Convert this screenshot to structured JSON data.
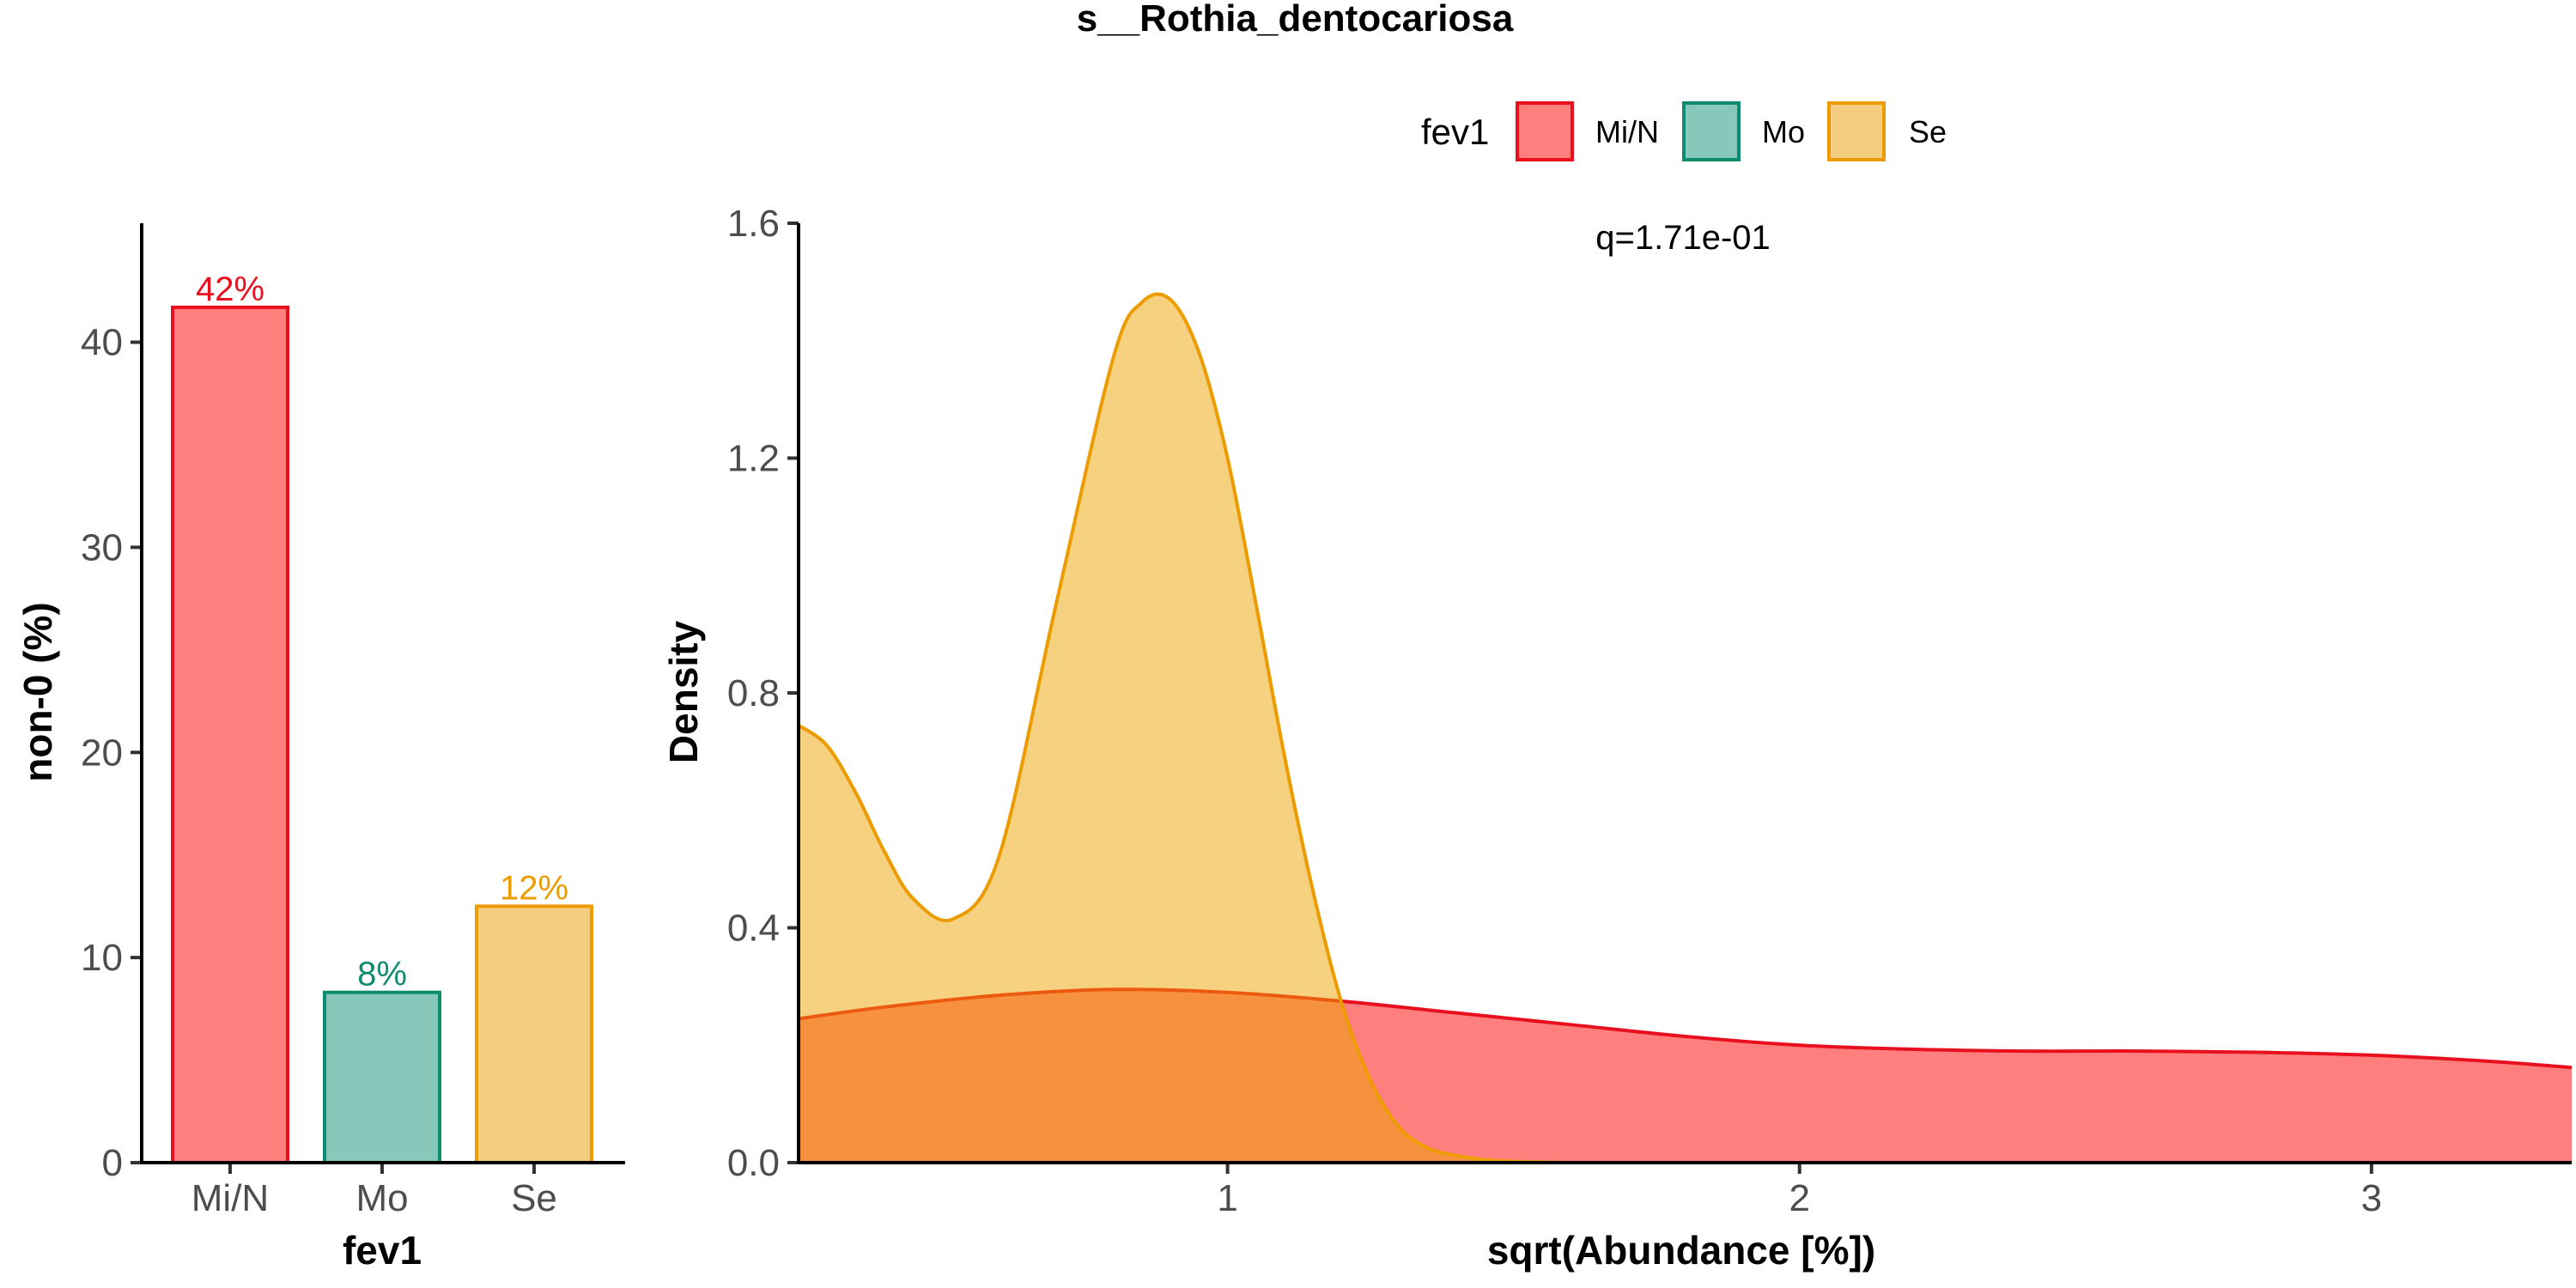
{
  "figure": {
    "title": "s__Rothia_dentocariosa"
  },
  "legend": {
    "title": "fev1",
    "entries": [
      {
        "label": "Mi/N",
        "fill": "#FF7F7F",
        "stroke": "#E8101E"
      },
      {
        "label": "Mo",
        "fill": "#88C8BA",
        "stroke": "#0E8C70"
      },
      {
        "label": "Se",
        "fill": "#F5CD80",
        "stroke": "#EC9C00"
      }
    ]
  },
  "chart_data": [
    {
      "type": "bar",
      "xlabel": "fev1",
      "ylabel": "non-0 (%)",
      "categories": [
        "Mi/N",
        "Mo",
        "Se"
      ],
      "values": [
        41.7,
        8.3,
        12.5
      ],
      "data_labels": [
        "42%",
        "8%",
        "12%"
      ],
      "ylim": [
        0,
        45.8
      ],
      "yticks": [
        0,
        10,
        20,
        30,
        40
      ],
      "ytick_labels": [
        "0",
        "10",
        "20",
        "30",
        "40"
      ],
      "colors": {
        "fill": [
          "#FF7F7F",
          "#88C8BA",
          "#F5CD80"
        ],
        "stroke": [
          "#E8101E",
          "#0E8C70",
          "#EC9C00"
        ],
        "label": [
          "#E8101E",
          "#0E8C70",
          "#EC9C00"
        ]
      },
      "grid": false
    },
    {
      "type": "area",
      "xlabel": "sqrt(Abundance [%])",
      "ylabel": "Density",
      "annotation": "q=1.71e-01",
      "xlim": [
        0.25,
        3.35
      ],
      "ylim": [
        0,
        1.6
      ],
      "xticks": [
        1,
        2,
        3
      ],
      "xtick_labels": [
        "1",
        "2",
        "3"
      ],
      "yticks": [
        0,
        0.4,
        0.8,
        1.2,
        1.6
      ],
      "ytick_labels": [
        "0.0",
        "0.4",
        "0.8",
        "1.2",
        "1.6"
      ],
      "grid": false,
      "series": [
        {
          "name": "Mi/N",
          "fill": "#FF0000",
          "fill_opacity": 0.5,
          "stroke": "#E8101E",
          "x": [
            0.25,
            0.4,
            0.6,
            0.8,
            1.0,
            1.2,
            1.4,
            1.6,
            1.8,
            2.0,
            2.2,
            2.4,
            2.6,
            2.8,
            3.0,
            3.2,
            3.35
          ],
          "y": [
            0.245,
            0.265,
            0.285,
            0.295,
            0.29,
            0.275,
            0.255,
            0.235,
            0.215,
            0.2,
            0.193,
            0.19,
            0.19,
            0.188,
            0.183,
            0.173,
            0.162
          ]
        },
        {
          "name": "Se",
          "fill": "#EDA300",
          "fill_opacity": 0.5,
          "stroke": "#EC9C00",
          "x": [
            0.25,
            0.3,
            0.35,
            0.4,
            0.45,
            0.52,
            0.6,
            0.7,
            0.8,
            0.85,
            0.9,
            0.95,
            1.0,
            1.05,
            1.1,
            1.15,
            1.2,
            1.25,
            1.3,
            1.35,
            1.4,
            1.45,
            1.5,
            1.55,
            1.6
          ],
          "y": [
            0.745,
            0.71,
            0.63,
            0.53,
            0.45,
            0.415,
            0.52,
            0.95,
            1.37,
            1.465,
            1.47,
            1.38,
            1.2,
            0.95,
            0.69,
            0.46,
            0.27,
            0.14,
            0.06,
            0.025,
            0.012,
            0.005,
            0.002,
            0.001,
            0.0
          ]
        }
      ]
    }
  ]
}
